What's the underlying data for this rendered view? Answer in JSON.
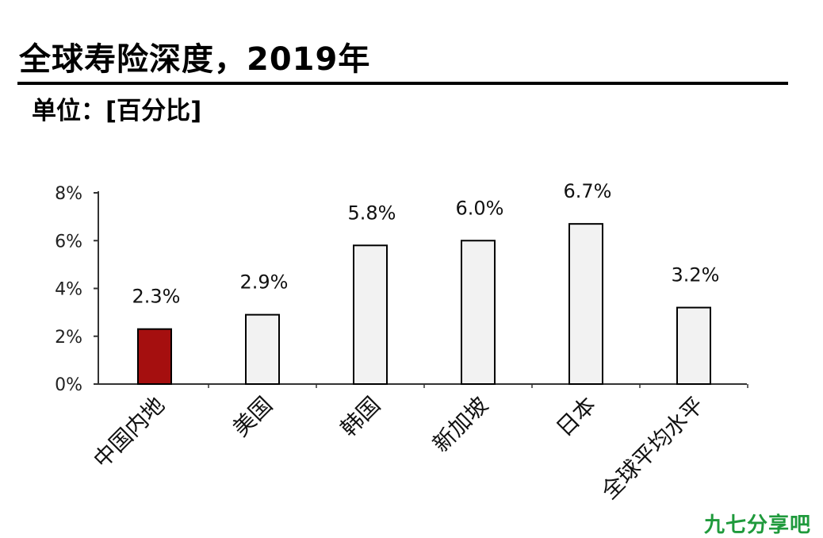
{
  "header": {
    "title": "全球寿险深度，2019年",
    "unit": "单位：[百分比]"
  },
  "watermark": "九七分享吧",
  "colors": {
    "highlight_bar": "#a50f0f",
    "bar": "#f2f2f2",
    "bar_stroke": "#000000",
    "axis": "#333333",
    "watermark": "#1f9a3c"
  },
  "chart_data": {
    "type": "bar",
    "title": "全球寿险深度，2019年",
    "subtitle": "单位：[百分比]",
    "xlabel": "",
    "ylabel": "",
    "categories": [
      "中国内地",
      "美国",
      "韩国",
      "新加坡",
      "日本",
      "全球平均水平"
    ],
    "values": [
      2.3,
      2.9,
      5.8,
      6.0,
      6.7,
      3.2
    ],
    "value_labels": [
      "2.3%",
      "2.9%",
      "5.8%",
      "6.0%",
      "6.7%",
      "3.2%"
    ],
    "highlight_index": 0,
    "ylim": [
      0,
      8
    ],
    "yticks": [
      0,
      2,
      4,
      6,
      8
    ],
    "ytick_labels": [
      "0%",
      "2%",
      "4%",
      "6%",
      "8%"
    ],
    "grid": false,
    "legend": "none"
  }
}
